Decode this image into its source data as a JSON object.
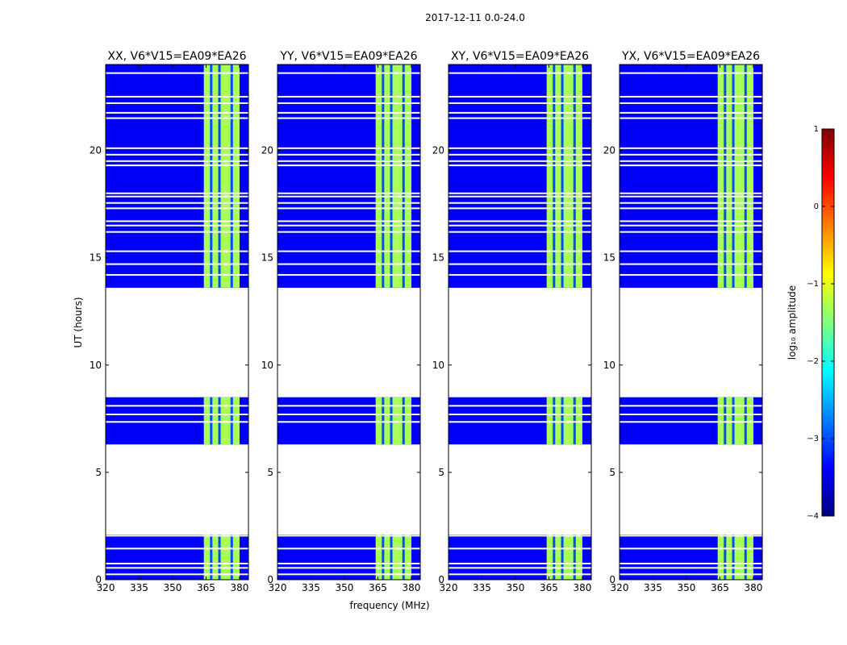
{
  "figure": {
    "suptitle": "2017-12-11 0.0-24.0",
    "xlabel": "frequency (MHz)",
    "ylabel": "UT (hours)"
  },
  "colorbar": {
    "label": "log₁₀ amplitude",
    "ticks": [
      1,
      0,
      -1,
      -2,
      -3,
      -4
    ],
    "range": [
      -4,
      1
    ],
    "colormap": "jet",
    "stops": [
      "#00007f",
      "#0000ff",
      "#007fff",
      "#00ffff",
      "#7fff7f",
      "#ffff00",
      "#ff7f00",
      "#ff0000",
      "#7f0000"
    ]
  },
  "chart_data": {
    "type": "heatmap",
    "x_range_mhz": [
      320,
      384
    ],
    "y_range_hours": [
      0,
      24
    ],
    "x_ticks": [
      320,
      335,
      350,
      365,
      380
    ],
    "y_ticks": [
      0,
      5,
      10,
      15,
      20
    ],
    "panels": [
      {
        "id": "xx",
        "title": "XX, V6*V15=EA09*EA26"
      },
      {
        "id": "yy",
        "title": "YY, V6*V15=EA09*EA26"
      },
      {
        "id": "xy",
        "title": "XY, V6*V15=EA09*EA26"
      },
      {
        "id": "yx",
        "title": "YX, V6*V15=EA09*EA26"
      }
    ],
    "data_blocks_hours": [
      [
        0.0,
        2.1
      ],
      [
        6.3,
        8.5
      ],
      [
        13.6,
        24.0
      ]
    ],
    "flagged_rows_hours": [
      0.25,
      0.55,
      0.75,
      1.45,
      2.05,
      7.35,
      7.7,
      8.1,
      14.2,
      14.7,
      15.3,
      16.2,
      16.5,
      16.7,
      17.3,
      17.55,
      17.85,
      18.0,
      19.3,
      19.5,
      19.8,
      20.1,
      21.5,
      21.75,
      22.2,
      22.5,
      23.6
    ],
    "bright_band_mhz": [
      364,
      380
    ],
    "channel_gaps_mhz": [
      367.3,
      371.0,
      376.5
    ],
    "background_log_amplitude": -3.4,
    "band_log_amplitude": -1.3
  }
}
